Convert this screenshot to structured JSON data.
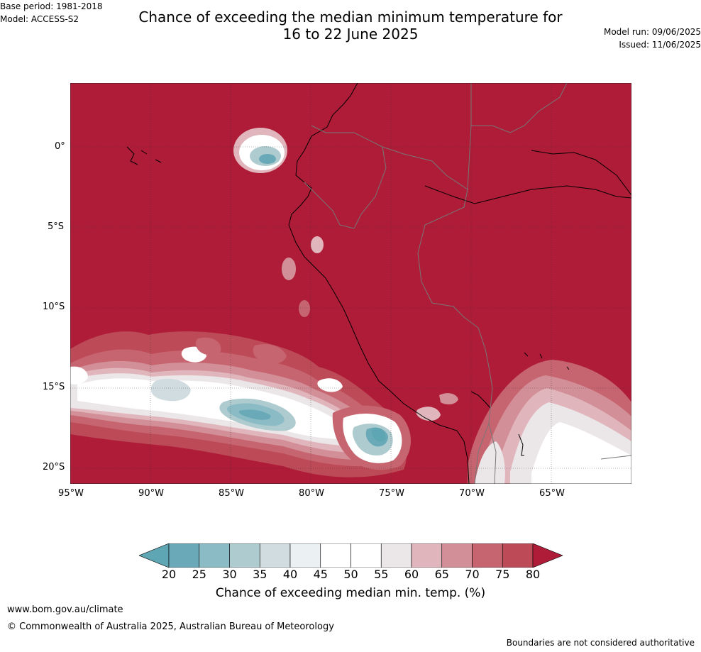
{
  "header": {
    "title_line1": "Chance of exceeding the median minimum temperature for",
    "title_line2": "16 to 22 June 2025",
    "base_period": "Base period: 1981-2018",
    "model": "Model: ACCESS-S2",
    "model_run": "Model run: 09/06/2025",
    "issued": "Issued: 11/06/2025"
  },
  "map": {
    "lat_labels": [
      "0°",
      "5°S",
      "10°S",
      "15°S",
      "20°S"
    ],
    "lon_labels": [
      "95°W",
      "90°W",
      "85°W",
      "80°W",
      "75°W",
      "70°W",
      "65°W"
    ]
  },
  "colorbar": {
    "title": "Chance of exceeding median min. temp. (%)",
    "ticks": [
      "20",
      "25",
      "30",
      "35",
      "40",
      "45",
      "50",
      "55",
      "60",
      "65",
      "70",
      "75",
      "80"
    ],
    "colors": [
      "#5ea6b3",
      "#6aaab8",
      "#8bbcc6",
      "#aecbcf",
      "#d0dcdf",
      "#ebf0f2",
      "#ffffff",
      "#ffffff",
      "#ebe7e9",
      "#e0b6bc",
      "#d38f98",
      "#c6656f",
      "#bd4a57",
      "#ae1c38"
    ]
  },
  "footer": {
    "website": "www.bom.gov.au/climate",
    "copyright": "© Commonwealth of Australia 2025, Australian Bureau of Meteorology",
    "disclaimer": "Boundaries are not considered authoritative"
  }
}
